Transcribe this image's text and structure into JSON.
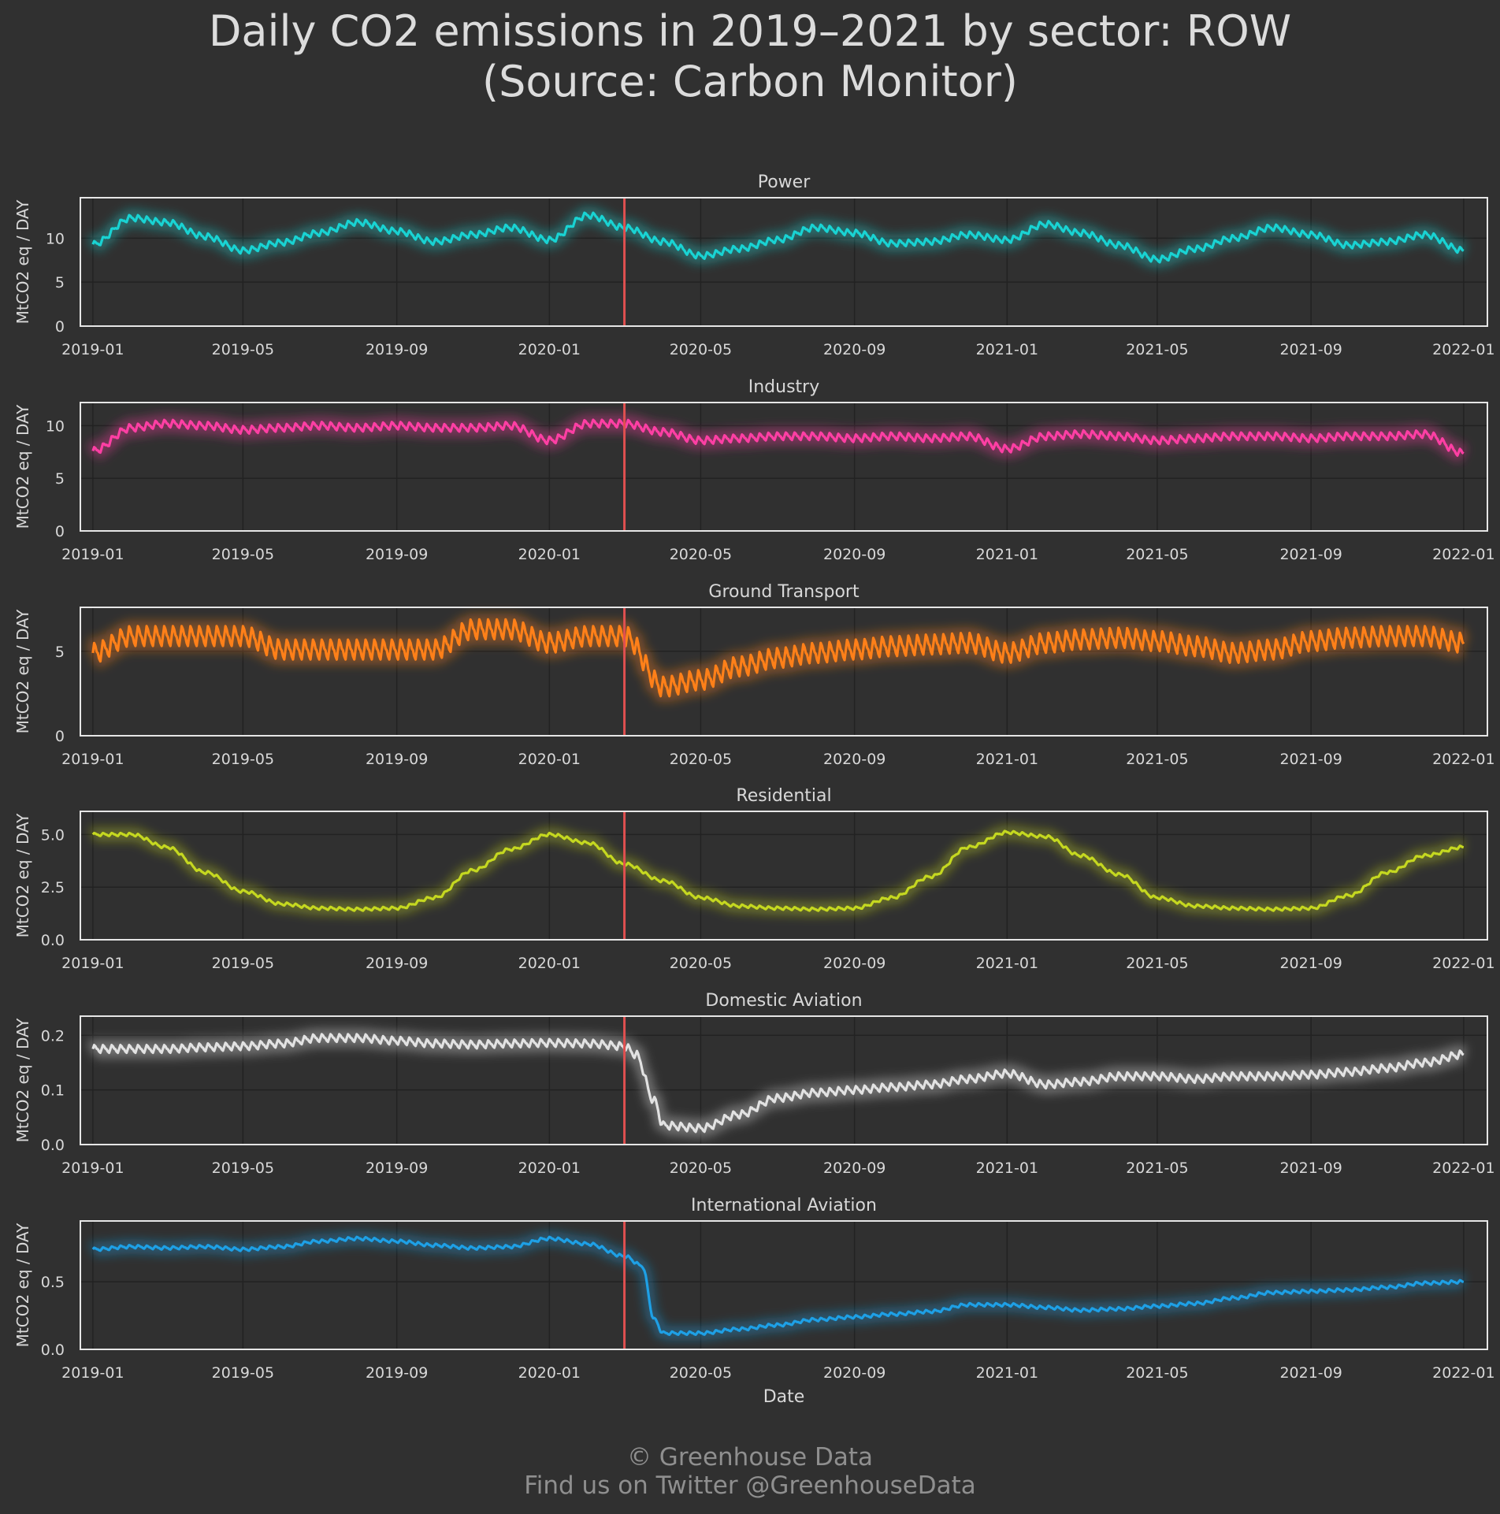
{
  "title_line1": "Daily CO2 emissions in 2019–2021 by sector: ROW",
  "title_line2": "(Source: Carbon Monitor)",
  "credit_line1": "© Greenhouse Data",
  "credit_line2": "Find us on Twitter @GreenhouseData",
  "colors": {
    "background": "#303030",
    "frame": "#e6e6e6",
    "grid": "#222222",
    "event_line": "#e05050"
  },
  "chart_data": [
    {
      "type": "line",
      "title": "Power",
      "ylabel": "MtCO2 eq / DAY",
      "color": "#19d3d3",
      "ylim": [
        0,
        14.6
      ],
      "yticks": [
        0,
        5,
        10
      ],
      "ytick_labels": [
        "0",
        "5",
        "10"
      ],
      "x_ticks": [
        "2019-01",
        "2019-05",
        "2019-09",
        "2020-01",
        "2020-05",
        "2020-09",
        "2021-01",
        "2021-05",
        "2021-09",
        "2022-01"
      ],
      "vline_x": "2020-03-01",
      "grid": true,
      "weekly_amplitude": 0.6,
      "x": [
        "2019-01-01",
        "2019-02-01",
        "2019-03-01",
        "2019-04-01",
        "2019-05-01",
        "2019-06-01",
        "2019-07-01",
        "2019-08-01",
        "2019-09-01",
        "2019-10-01",
        "2019-11-01",
        "2019-12-01",
        "2020-01-01",
        "2020-02-01",
        "2020-03-01",
        "2020-04-01",
        "2020-05-01",
        "2020-06-01",
        "2020-07-01",
        "2020-08-01",
        "2020-09-01",
        "2020-10-01",
        "2020-11-01",
        "2020-12-01",
        "2021-01-01",
        "2021-02-01",
        "2021-03-01",
        "2021-04-01",
        "2021-05-01",
        "2021-06-01",
        "2021-07-01",
        "2021-08-01",
        "2021-09-01",
        "2021-10-01",
        "2021-11-01",
        "2021-12-01",
        "2022-01-01"
      ],
      "values": [
        9.3,
        12.3,
        11.8,
        10.2,
        8.6,
        9.5,
        10.6,
        11.8,
        10.8,
        9.6,
        10.4,
        11.2,
        9.8,
        12.6,
        11.2,
        9.6,
        8.0,
        8.8,
        9.8,
        11.2,
        10.6,
        9.4,
        9.6,
        10.4,
        9.8,
        11.6,
        10.6,
        9.2,
        7.6,
        8.8,
        10.0,
        11.2,
        10.4,
        9.2,
        9.6,
        10.4,
        8.6
      ]
    },
    {
      "type": "line",
      "title": "Industry",
      "ylabel": "MtCO2 eq / DAY",
      "color": "#ff3fa4",
      "ylim": [
        0,
        12.2
      ],
      "yticks": [
        0,
        5,
        10
      ],
      "ytick_labels": [
        "0",
        "5",
        "10"
      ],
      "x_ticks": [
        "2019-01",
        "2019-05",
        "2019-09",
        "2020-01",
        "2020-05",
        "2020-09",
        "2021-01",
        "2021-05",
        "2021-09",
        "2022-01"
      ],
      "vline_x": "2020-03-01",
      "grid": true,
      "weekly_amplitude": 0.6,
      "x": [
        "2019-01-01",
        "2019-02-01",
        "2019-03-01",
        "2019-04-01",
        "2019-05-01",
        "2019-06-01",
        "2019-07-01",
        "2019-08-01",
        "2019-09-01",
        "2019-10-01",
        "2019-11-01",
        "2019-12-01",
        "2020-01-01",
        "2020-02-01",
        "2020-03-01",
        "2020-04-01",
        "2020-05-01",
        "2020-06-01",
        "2020-07-01",
        "2020-08-01",
        "2020-09-01",
        "2020-10-01",
        "2020-11-01",
        "2020-12-01",
        "2021-01-01",
        "2021-02-01",
        "2021-03-01",
        "2021-04-01",
        "2021-05-01",
        "2021-06-01",
        "2021-07-01",
        "2021-08-01",
        "2021-09-01",
        "2021-10-01",
        "2021-11-01",
        "2021-12-01",
        "2022-01-01"
      ],
      "values": [
        7.6,
        9.8,
        10.2,
        10.0,
        9.6,
        9.8,
        10.0,
        9.8,
        10.0,
        9.8,
        9.8,
        10.0,
        8.6,
        10.2,
        10.2,
        9.4,
        8.6,
        8.8,
        9.0,
        9.0,
        8.8,
        9.0,
        8.8,
        9.0,
        7.8,
        9.0,
        9.2,
        9.0,
        8.6,
        8.8,
        9.0,
        9.0,
        8.8,
        9.0,
        9.0,
        9.2,
        7.4
      ]
    },
    {
      "type": "line",
      "title": "Ground Transport",
      "ylabel": "MtCO2 eq / DAY",
      "color": "#ff8019",
      "ylim": [
        0,
        7.6
      ],
      "yticks": [
        0,
        5
      ],
      "ytick_labels": [
        "0",
        "5"
      ],
      "x_ticks": [
        "2019-01",
        "2019-05",
        "2019-09",
        "2020-01",
        "2020-05",
        "2020-09",
        "2021-01",
        "2021-05",
        "2021-09",
        "2022-01"
      ],
      "vline_x": "2020-03-01",
      "grid": true,
      "weekly_amplitude": 1.0,
      "x": [
        "2019-01-01",
        "2019-02-01",
        "2019-03-01",
        "2019-04-01",
        "2019-05-01",
        "2019-06-01",
        "2019-07-01",
        "2019-08-01",
        "2019-09-01",
        "2019-10-01",
        "2019-11-01",
        "2019-12-01",
        "2020-01-01",
        "2020-02-01",
        "2020-03-01",
        "2020-04-01",
        "2020-05-01",
        "2020-06-01",
        "2020-07-01",
        "2020-08-01",
        "2020-09-01",
        "2020-10-01",
        "2020-11-01",
        "2020-12-01",
        "2021-01-01",
        "2021-02-01",
        "2021-03-01",
        "2021-04-01",
        "2021-05-01",
        "2021-06-01",
        "2021-07-01",
        "2021-08-01",
        "2021-09-01",
        "2021-10-01",
        "2021-11-01",
        "2021-12-01",
        "2022-01-01"
      ],
      "values": [
        4.9,
        5.9,
        5.9,
        5.9,
        5.9,
        5.1,
        5.1,
        5.1,
        5.1,
        5.1,
        6.3,
        6.3,
        5.5,
        5.9,
        5.9,
        2.9,
        3.3,
        4.1,
        4.6,
        4.9,
        5.1,
        5.3,
        5.4,
        5.5,
        4.9,
        5.5,
        5.7,
        5.8,
        5.6,
        5.3,
        4.9,
        5.1,
        5.6,
        5.8,
        5.9,
        5.9,
        5.5
      ]
    },
    {
      "type": "line",
      "title": "Residential",
      "ylabel": "MtCO2 eq / DAY",
      "color": "#c5d820",
      "ylim": [
        0,
        6.1
      ],
      "yticks": [
        0,
        2.5,
        5.0
      ],
      "ytick_labels": [
        "0.0",
        "2.5",
        "5.0"
      ],
      "x_ticks": [
        "2019-01",
        "2019-05",
        "2019-09",
        "2020-01",
        "2020-05",
        "2020-09",
        "2021-01",
        "2021-05",
        "2021-09",
        "2022-01"
      ],
      "vline_x": "2020-03-01",
      "grid": true,
      "weekly_amplitude": 0.12,
      "x": [
        "2019-01-01",
        "2019-02-01",
        "2019-03-01",
        "2019-04-01",
        "2019-05-01",
        "2019-06-01",
        "2019-07-01",
        "2019-08-01",
        "2019-09-01",
        "2019-10-01",
        "2019-11-01",
        "2019-12-01",
        "2020-01-01",
        "2020-02-01",
        "2020-03-01",
        "2020-04-01",
        "2020-05-01",
        "2020-06-01",
        "2020-07-01",
        "2020-08-01",
        "2020-09-01",
        "2020-10-01",
        "2020-11-01",
        "2020-12-01",
        "2021-01-01",
        "2021-02-01",
        "2021-03-01",
        "2021-04-01",
        "2021-05-01",
        "2021-06-01",
        "2021-07-01",
        "2021-08-01",
        "2021-09-01",
        "2021-10-01",
        "2021-11-01",
        "2021-12-01",
        "2022-01-01"
      ],
      "values": [
        5.0,
        5.0,
        4.4,
        3.2,
        2.3,
        1.7,
        1.5,
        1.45,
        1.5,
        2.0,
        3.3,
        4.3,
        5.0,
        4.6,
        3.6,
        2.8,
        2.0,
        1.6,
        1.5,
        1.45,
        1.5,
        2.0,
        3.0,
        4.4,
        5.1,
        4.9,
        4.0,
        3.1,
        2.0,
        1.6,
        1.5,
        1.45,
        1.5,
        2.1,
        3.2,
        4.0,
        4.4
      ]
    },
    {
      "type": "line",
      "title": "Domestic Aviation",
      "ylabel": "MtCO2 eq / DAY",
      "color": "#e2e2e2",
      "xlabel": "",
      "ylim": [
        0,
        0.235
      ],
      "yticks": [
        0,
        0.1,
        0.2
      ],
      "ytick_labels": [
        "0.0",
        "0.1",
        "0.2"
      ],
      "x_ticks": [
        "2019-01",
        "2019-05",
        "2019-09",
        "2020-01",
        "2020-05",
        "2020-09",
        "2021-01",
        "2021-05",
        "2021-09",
        "2022-01"
      ],
      "vline_x": "2020-03-01",
      "grid": true,
      "weekly_amplitude": 0.012,
      "x": [
        "2019-01-01",
        "2019-02-01",
        "2019-03-01",
        "2019-04-01",
        "2019-05-01",
        "2019-06-01",
        "2019-07-01",
        "2019-08-01",
        "2019-09-01",
        "2019-10-01",
        "2019-11-01",
        "2019-12-01",
        "2020-01-01",
        "2020-02-01",
        "2020-03-01",
        "2020-03-10",
        "2020-03-25",
        "2020-04-01",
        "2020-05-01",
        "2020-06-01",
        "2020-07-01",
        "2020-08-01",
        "2020-09-01",
        "2020-10-01",
        "2020-11-01",
        "2020-12-01",
        "2021-01-01",
        "2021-02-01",
        "2021-03-01",
        "2021-04-01",
        "2021-05-01",
        "2021-06-01",
        "2021-07-01",
        "2021-08-01",
        "2021-09-01",
        "2021-10-01",
        "2021-11-01",
        "2021-12-01",
        "2022-01-01"
      ],
      "values": [
        0.175,
        0.175,
        0.175,
        0.178,
        0.18,
        0.185,
        0.195,
        0.195,
        0.19,
        0.185,
        0.183,
        0.185,
        0.186,
        0.185,
        0.18,
        0.165,
        0.08,
        0.035,
        0.03,
        0.055,
        0.085,
        0.095,
        0.1,
        0.105,
        0.11,
        0.12,
        0.13,
        0.11,
        0.115,
        0.125,
        0.125,
        0.12,
        0.125,
        0.125,
        0.128,
        0.133,
        0.14,
        0.15,
        0.165
      ]
    },
    {
      "type": "line",
      "title": "International Aviation",
      "ylabel": "MtCO2 eq / DAY",
      "xlabel": "Date",
      "color": "#1ea0e6",
      "ylim": [
        0,
        0.95
      ],
      "yticks": [
        0,
        0.5
      ],
      "ytick_labels": [
        "0.0",
        "0.5"
      ],
      "x_ticks": [
        "2019-01",
        "2019-05",
        "2019-09",
        "2020-01",
        "2020-05",
        "2020-09",
        "2021-01",
        "2021-05",
        "2021-09",
        "2022-01"
      ],
      "vline_x": "2020-03-01",
      "grid": true,
      "weekly_amplitude": 0.02,
      "x": [
        "2019-01-01",
        "2019-02-01",
        "2019-03-01",
        "2019-04-01",
        "2019-05-01",
        "2019-06-01",
        "2019-07-01",
        "2019-08-01",
        "2019-09-01",
        "2019-10-01",
        "2019-11-01",
        "2019-12-01",
        "2020-01-01",
        "2020-02-01",
        "2020-03-01",
        "2020-03-15",
        "2020-03-25",
        "2020-04-01",
        "2020-05-01",
        "2020-06-01",
        "2020-07-01",
        "2020-08-01",
        "2020-09-01",
        "2020-10-01",
        "2020-11-01",
        "2020-12-01",
        "2021-01-01",
        "2021-02-01",
        "2021-03-01",
        "2021-04-01",
        "2021-05-01",
        "2021-06-01",
        "2021-07-01",
        "2021-08-01",
        "2021-09-01",
        "2021-10-01",
        "2021-11-01",
        "2021-12-01",
        "2022-01-01"
      ],
      "values": [
        0.74,
        0.76,
        0.75,
        0.76,
        0.74,
        0.76,
        0.8,
        0.82,
        0.8,
        0.77,
        0.75,
        0.76,
        0.82,
        0.78,
        0.69,
        0.62,
        0.22,
        0.12,
        0.12,
        0.15,
        0.18,
        0.22,
        0.24,
        0.26,
        0.28,
        0.33,
        0.33,
        0.31,
        0.29,
        0.3,
        0.32,
        0.34,
        0.38,
        0.42,
        0.43,
        0.44,
        0.46,
        0.49,
        0.5
      ]
    }
  ]
}
